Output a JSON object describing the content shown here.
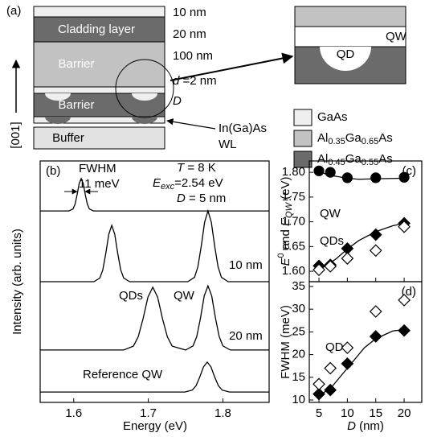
{
  "diagram": {
    "label": "(a)",
    "layers": [
      "Cladding layer",
      "Barrier",
      "Barrier",
      "Buffer"
    ],
    "thicknesses": [
      "10 nm",
      "20 nm",
      "100 nm",
      [
        "d",
        " =2 nm"
      ],
      [
        "D"
      ]
    ],
    "wetting_layer": [
      "In(Ga)As",
      "WL"
    ],
    "growth_axis": "[001]",
    "inset": [
      "QW",
      "QD"
    ],
    "legend": [
      [
        "GaAs"
      ],
      [
        "Al",
        "0.35",
        "Ga",
        "0.65",
        "As"
      ],
      [
        "Al",
        "0.45",
        "Ga",
        "0.55",
        "As"
      ]
    ],
    "legend_colors": [
      "#efefef",
      "#c2c2c2",
      "#6b6b6b"
    ]
  },
  "chart_data": [
    {
      "type": "line",
      "panel": "(b)",
      "x_label": "Energy (eV)",
      "y_label": "Intensity (arb. units)",
      "xlim": [
        1.555,
        1.862
      ],
      "xticks": [
        1.6,
        1.7,
        1.8
      ],
      "ylim": [
        0,
        10
      ],
      "annotations": [
        "FWHM",
        "11 meV",
        [
          "T",
          " = 8 K"
        ],
        [
          "E",
          "exc",
          "=2.54 eV"
        ],
        [
          "D",
          " = 5 nm"
        ],
        "QDs",
        "QW"
      ],
      "series": [
        {
          "color": "#000",
          "x": [
            1.555,
            1.5935,
            1.599,
            1.6018,
            1.6045,
            1.6073,
            1.61,
            1.6128,
            1.6155,
            1.6183,
            1.621,
            1.6265,
            1.862
          ],
          "values": [
            7.93,
            7.93,
            8.01,
            8.21,
            8.6,
            9.06,
            9.27,
            9.06,
            8.6,
            8.21,
            8.01,
            7.93,
            7.93
          ]
        },
        {
          "name": "10 nm",
          "color": "#000",
          "x": [
            1.555,
            1.627,
            1.635,
            1.639,
            1.643,
            1.647,
            1.651,
            1.655,
            1.659,
            1.663,
            1.667,
            1.675,
            1.753,
            1.762,
            1.7665,
            1.771,
            1.7755,
            1.78,
            1.7845,
            1.789,
            1.7935,
            1.798,
            1.807,
            1.862
          ],
          "values": [
            5.0,
            5.0,
            5.15,
            5.49,
            6.17,
            6.96,
            7.33,
            6.96,
            6.17,
            5.49,
            5.15,
            5.0,
            5.0,
            5.18,
            5.62,
            6.47,
            7.46,
            7.93,
            7.46,
            6.47,
            5.62,
            5.18,
            5.0,
            5.0
          ]
        },
        {
          "name": "20 nm",
          "color": "#000",
          "x": [
            1.555,
            1.667,
            1.68,
            1.6865,
            1.693,
            1.6995,
            1.706,
            1.7125,
            1.719,
            1.7255,
            1.732,
            1.75,
            1.76,
            1.765,
            1.77,
            1.775,
            1.78,
            1.785,
            1.79,
            1.795,
            1.8,
            1.81,
            1.862
          ],
          "values": [
            2.17,
            2.17,
            2.33,
            2.72,
            3.47,
            4.36,
            4.77,
            4.36,
            3.47,
            2.72,
            2.33,
            2.17,
            2.34,
            2.73,
            3.5,
            4.41,
            4.83,
            4.41,
            3.5,
            2.73,
            2.34,
            2.17,
            2.17
          ]
        },
        {
          "name": "Reference QW",
          "color": "#000",
          "x": [
            1.555,
            1.749,
            1.759,
            1.764,
            1.769,
            1.774,
            1.779,
            1.784,
            1.789,
            1.794,
            1.799,
            1.809,
            1.862
          ],
          "values": [
            0.43,
            0.43,
            0.51,
            0.69,
            1.05,
            1.47,
            1.67,
            1.47,
            1.05,
            0.69,
            0.51,
            0.43,
            0.43
          ]
        }
      ]
    },
    {
      "type": "scatter",
      "panel": "(c)",
      "y_label": [
        "E",
        "0",
        " and ",
        "E",
        "QW",
        " (eV)"
      ],
      "xlim": [
        3.3,
        23.1
      ],
      "xticks": [
        5,
        10,
        15,
        20
      ],
      "ylim": [
        1.579,
        1.823
      ],
      "yticks": [
        {
          "value": 1.6,
          "label": "1.60"
        },
        {
          "value": 1.65,
          "label": "1.65"
        },
        {
          "value": 1.7,
          "label": "1.70"
        },
        {
          "value": 1.75,
          "label": "1.75"
        },
        {
          "value": 1.8,
          "label": "1.80"
        }
      ],
      "series": [
        {
          "style": "line",
          "color": "#000",
          "x": [
            5,
            7,
            10,
            12,
            15,
            20
          ],
          "values": [
            1.801,
            1.794,
            1.788,
            1.786,
            1.787,
            1.788
          ]
        },
        {
          "style": "line",
          "color": "#000",
          "x": [
            5,
            8,
            10,
            12,
            15,
            18,
            20
          ],
          "values": [
            1.602,
            1.625,
            1.645,
            1.662,
            1.68,
            1.692,
            1.697
          ]
        },
        {
          "name": "QW",
          "marker": "circle",
          "filled": true,
          "color": "#000",
          "x": [
            5,
            7,
            10,
            15,
            20
          ],
          "values": [
            1.803,
            1.8,
            1.789,
            1.789,
            1.79
          ]
        },
        {
          "name": "QDs",
          "marker": "diamond",
          "filled": true,
          "color": "#000",
          "x": [
            5,
            7,
            10,
            15,
            20
          ],
          "values": [
            1.611,
            1.613,
            1.646,
            1.674,
            1.697
          ]
        },
        {
          "marker": "diamond",
          "filled": false,
          "color": "#000",
          "x": [
            5,
            7,
            10,
            15,
            20
          ],
          "values": [
            1.603,
            1.61,
            1.626,
            1.642,
            1.69
          ]
        }
      ]
    },
    {
      "type": "scatter",
      "panel": "(d)",
      "y_label": "FWHM (meV)",
      "x_label": [
        "D",
        " (nm)"
      ],
      "xlim": [
        3.3,
        23.1
      ],
      "xticks": [
        5,
        10,
        15,
        20
      ],
      "ylim": [
        9.47,
        36.06
      ],
      "yticks": [
        10,
        15,
        20,
        25,
        30,
        35
      ],
      "series": [
        {
          "style": "line",
          "color": "#000",
          "x": [
            5,
            7,
            10,
            13,
            15,
            18,
            20
          ],
          "values": [
            11,
            12.5,
            17,
            21.5,
            23.5,
            25.2,
            25.5
          ]
        },
        {
          "name": "QDs",
          "marker": "diamond",
          "filled": true,
          "color": "#000",
          "x": [
            5,
            7,
            10,
            15,
            20
          ],
          "values": [
            11.3,
            12.2,
            18,
            24,
            25.3
          ]
        },
        {
          "marker": "diamond",
          "filled": false,
          "color": "#000",
          "x": [
            5,
            7,
            10,
            15,
            20
          ],
          "values": [
            13.5,
            17,
            21.5,
            29.5,
            32
          ]
        }
      ]
    }
  ]
}
